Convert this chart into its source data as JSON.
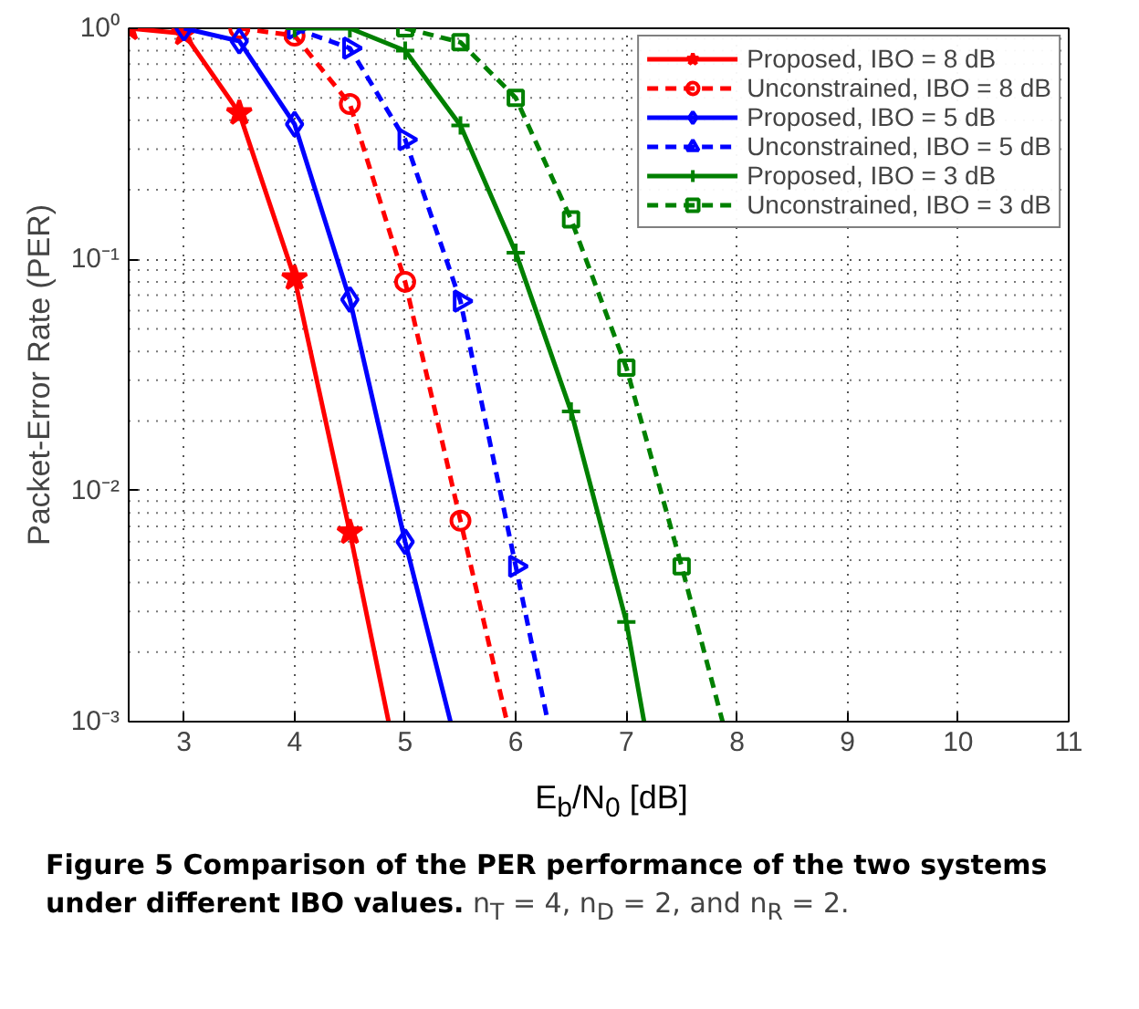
{
  "chart_data": {
    "type": "line",
    "xlabel": "E$_{b}$/N$_{0}$ [dB]",
    "ylabel": "Packet-Error Rate (PER)",
    "log": "y",
    "grid": true,
    "legend": "top right",
    "xlim": [
      2.5,
      11
    ],
    "xticks": [
      3,
      4,
      5,
      6,
      7,
      8,
      9,
      10,
      11
    ],
    "ylim": [
      0.001,
      1
    ],
    "yticks": [
      {
        "value": 0.001,
        "label": "10⁻³"
      },
      {
        "value": 0.01,
        "label": "10⁻²"
      },
      {
        "value": 0.1,
        "label": "10⁻¹"
      },
      {
        "value": 1,
        "label": "10⁰"
      }
    ],
    "series": [
      {
        "name": "Proposed, IBO = 8 dB",
        "color": "#ff0000",
        "marker": "star",
        "line_style": "solid",
        "x": [
          2.5,
          3,
          3.5,
          4,
          4.5,
          4.85
        ],
        "values": [
          1,
          0.95,
          0.43,
          0.083,
          0.0066,
          0.001
        ]
      },
      {
        "name": "Unconstrained, IBO = 8 dB",
        "color": "#ff0000",
        "marker": "circle",
        "line_style": "dashed",
        "x": [
          3.5,
          4,
          4.5,
          5,
          5.5,
          5.92
        ],
        "values": [
          1,
          0.93,
          0.47,
          0.08,
          0.0074,
          0.001
        ]
      },
      {
        "name": "Proposed, IBO = 5 dB",
        "color": "#0000ff",
        "marker": "diamond",
        "line_style": "solid",
        "x": [
          3,
          3.5,
          4,
          4.5,
          5,
          5.41
        ],
        "values": [
          1,
          0.88,
          0.385,
          0.067,
          0.006,
          0.001
        ]
      },
      {
        "name": "Unconstrained, IBO = 5 dB",
        "color": "#0000ff",
        "marker": "triangle",
        "line_style": "dashed",
        "x": [
          4,
          4.5,
          5,
          5.5,
          6,
          6.29
        ],
        "values": [
          1,
          0.82,
          0.33,
          0.066,
          0.0047,
          0.001
        ]
      },
      {
        "name": "Proposed, IBO = 3 dB",
        "color": "#008000",
        "marker": "cross",
        "line_style": "solid",
        "x": [
          4,
          4.5,
          5,
          5.5,
          6,
          6.5,
          7,
          7.16
        ],
        "values": [
          1,
          1,
          0.8,
          0.38,
          0.107,
          0.022,
          0.0027,
          0.001
        ]
      },
      {
        "name": "Unconstrained, IBO = 3 dB",
        "color": "#008000",
        "marker": "square",
        "line_style": "dashed",
        "x": [
          5,
          5.5,
          6,
          6.5,
          7,
          7.5,
          7.87
        ],
        "values": [
          1,
          0.87,
          0.5,
          0.149,
          0.034,
          0.0047,
          0.001
        ]
      }
    ],
    "annotations": [
      "Figure 5 Comparison of the PER performance of the two systems under different IBO values.",
      "n$_{T}$ = 4, n$_{D}$ = 2, and n$_{R}$ = 2."
    ]
  }
}
